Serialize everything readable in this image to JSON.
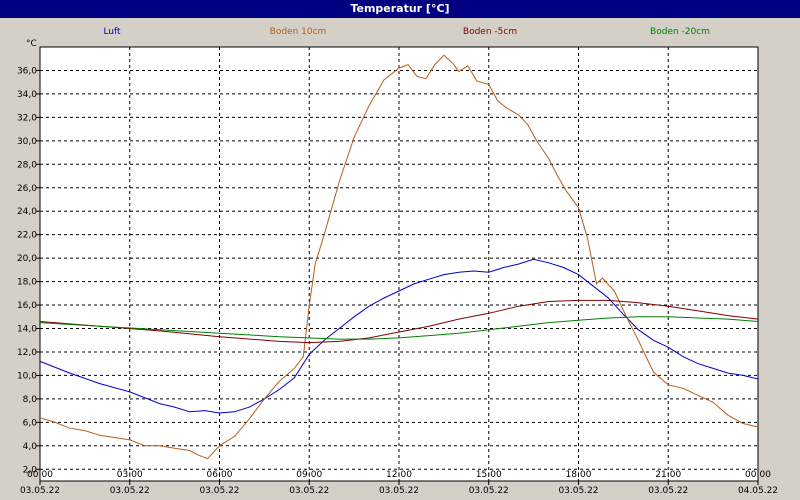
{
  "window": {
    "title": "Temperatur [°C]"
  },
  "chart_data": {
    "type": "line",
    "title": "Temperatur [°C]",
    "ylabel": "°C",
    "ylim": [
      1,
      38
    ],
    "yticks": [
      2,
      4,
      6,
      8,
      10,
      12,
      14,
      16,
      18,
      20,
      22,
      24,
      26,
      28,
      30,
      32,
      34,
      36
    ],
    "ytick_labels": [
      "2,0",
      "4,0",
      "6,0",
      "8,0",
      "10,0",
      "12,0",
      "14,0",
      "16,0",
      "18,0",
      "20,0",
      "22,0",
      "24,0",
      "26,0",
      "28,0",
      "30,0",
      "32,0",
      "34,0",
      "36,0"
    ],
    "xlim": [
      0,
      24
    ],
    "xticks": [
      0,
      3,
      6,
      9,
      12,
      15,
      18,
      21,
      24
    ],
    "xtick_times": [
      "00:00",
      "03:00",
      "06:00",
      "09:00",
      "12:00",
      "15:00",
      "18:00",
      "21:00",
      "00:00"
    ],
    "xtick_dates": [
      "03.05.22",
      "03.05.22",
      "03.05.22",
      "03.05.22",
      "03.05.22",
      "03.05.22",
      "03.05.22",
      "03.05.22",
      "04.05.22"
    ],
    "grid": true,
    "legend_position": "top",
    "series": [
      {
        "name": "Luft",
        "color": "#0000cc",
        "x": [
          0,
          1,
          2,
          3,
          4,
          4.5,
          5,
          5.5,
          6,
          6.5,
          7,
          7.5,
          8,
          8.5,
          9,
          9.5,
          10,
          10.5,
          11,
          11.5,
          12,
          12.5,
          13,
          13.5,
          14,
          14.5,
          15,
          15.5,
          16,
          16.5,
          17,
          17.5,
          18,
          18.5,
          19,
          19.5,
          20,
          20.5,
          21,
          21.5,
          22,
          22.5,
          23,
          23.5,
          24
        ],
        "y": [
          11.2,
          10.2,
          9.3,
          8.6,
          7.6,
          7.3,
          6.9,
          7.0,
          6.8,
          6.9,
          7.3,
          8.0,
          8.8,
          9.8,
          11.8,
          13.0,
          14.0,
          15.0,
          15.9,
          16.6,
          17.2,
          17.8,
          18.2,
          18.6,
          18.8,
          18.9,
          18.8,
          19.2,
          19.5,
          19.9,
          19.6,
          19.2,
          18.6,
          17.6,
          16.6,
          15.2,
          13.9,
          13.0,
          12.4,
          11.6,
          11.0,
          10.6,
          10.2,
          10.0,
          9.7
        ]
      },
      {
        "name": "Boden 10cm",
        "color": "#b85c1c",
        "x": [
          0,
          0.5,
          1,
          1.5,
          2,
          3,
          3.5,
          4,
          4.5,
          5,
          5.3,
          5.6,
          6,
          6.5,
          7,
          7.5,
          8,
          8.5,
          8.8,
          9.0,
          9.2,
          9.5,
          10,
          10.5,
          11,
          11.5,
          12,
          12.3,
          12.6,
          12.9,
          13.2,
          13.5,
          13.8,
          14.0,
          14.3,
          14.6,
          15,
          15.3,
          15.6,
          16,
          16.3,
          16.6,
          17,
          17.3,
          17.6,
          18,
          18.3,
          18.6,
          18.8,
          19.2,
          19.6,
          20,
          20.5,
          21,
          21.5,
          22,
          22.5,
          23,
          23.5,
          24
        ],
        "y": [
          6.4,
          6.0,
          5.5,
          5.3,
          4.9,
          4.5,
          4.0,
          4.0,
          3.8,
          3.6,
          3.2,
          2.9,
          4.0,
          4.8,
          6.3,
          8.0,
          9.5,
          10.6,
          11.6,
          16.0,
          19.5,
          22.0,
          26.5,
          30.3,
          33.0,
          35.2,
          36.2,
          36.5,
          35.5,
          35.3,
          36.5,
          37.3,
          36.6,
          35.9,
          36.4,
          35.1,
          34.8,
          33.4,
          32.8,
          32.2,
          31.4,
          30.0,
          28.5,
          27.0,
          25.7,
          24.3,
          21.7,
          17.8,
          18.3,
          17.2,
          15.0,
          13.0,
          10.3,
          9.2,
          8.9,
          8.3,
          7.7,
          6.6,
          5.9,
          5.6
        ]
      },
      {
        "name": "Boden -5cm",
        "color": "#800000",
        "x": [
          0,
          2,
          4,
          6,
          8,
          9,
          10,
          11,
          12,
          13,
          14,
          15,
          16,
          17,
          18,
          19,
          20,
          21,
          22,
          23,
          24
        ],
        "y": [
          14.6,
          14.2,
          13.8,
          13.3,
          12.9,
          12.8,
          12.9,
          13.2,
          13.7,
          14.2,
          14.8,
          15.3,
          15.9,
          16.3,
          16.4,
          16.4,
          16.2,
          15.9,
          15.5,
          15.1,
          14.8
        ]
      },
      {
        "name": "Boden -20cm",
        "color": "#008000",
        "x": [
          0,
          2,
          4,
          6,
          8,
          10,
          11,
          12,
          13,
          14,
          15,
          16,
          17,
          18,
          19,
          20,
          21,
          22,
          23,
          24
        ],
        "y": [
          14.5,
          14.2,
          13.9,
          13.6,
          13.3,
          13.1,
          13.1,
          13.2,
          13.4,
          13.6,
          13.9,
          14.2,
          14.5,
          14.7,
          14.9,
          15.0,
          15.0,
          14.9,
          14.8,
          14.6
        ]
      }
    ]
  }
}
